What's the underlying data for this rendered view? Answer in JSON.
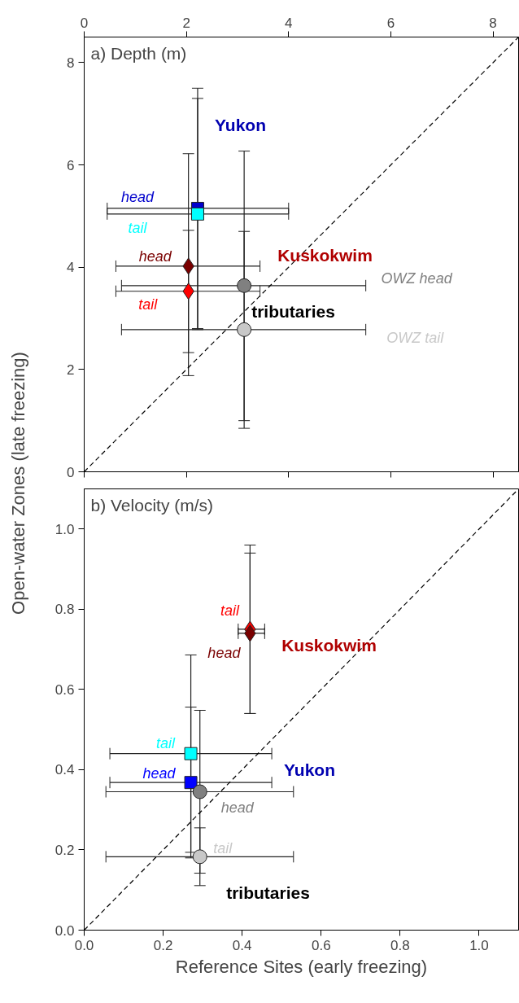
{
  "chart_data": [
    {
      "type": "scatter",
      "title": "a) Depth (m)",
      "ylabel": "Open-water Zones (late freezing)",
      "xlim": [
        0,
        8.5
      ],
      "xticks": [
        0,
        2,
        4,
        6,
        8
      ],
      "ylim": [
        0,
        8.5
      ],
      "yticks": [
        0,
        2,
        4,
        6,
        8
      ],
      "grid": false,
      "series": [
        {
          "type": "line",
          "color": "#000000",
          "line_style": "dashed",
          "x": [
            0,
            8.5
          ],
          "values": [
            0,
            8.5
          ]
        },
        {
          "name": "head",
          "color": "#0000cc",
          "marker": "square",
          "x": [
            2.22
          ],
          "values": [
            5.15
          ],
          "errors": [
            [
              2.8,
              7.5
            ]
          ],
          "xerrors": [
            [
              0.45,
              4.0
            ]
          ]
        },
        {
          "name": "tail",
          "color": "#00ffff",
          "marker": "square",
          "x": [
            2.22
          ],
          "values": [
            5.04
          ],
          "errors": [
            [
              2.78,
              7.3
            ]
          ],
          "xerrors": [
            [
              0.45,
              4.0
            ]
          ]
        },
        {
          "name": "head",
          "color": "#7a0000",
          "marker": "diamond",
          "x": [
            2.04
          ],
          "values": [
            4.02
          ],
          "errors": [
            [
              1.88,
              6.22
            ]
          ],
          "xerrors": [
            [
              0.62,
              3.44
            ]
          ]
        },
        {
          "name": "tail",
          "color": "#ff0000",
          "marker": "diamond",
          "x": [
            2.04
          ],
          "values": [
            3.53
          ],
          "errors": [
            [
              2.33,
              4.72
            ]
          ],
          "xerrors": [
            [
              0.62,
              3.44
            ]
          ]
        },
        {
          "name": "OWZ head",
          "color": "#808080",
          "marker": "circle",
          "x": [
            3.13
          ],
          "values": [
            3.64
          ],
          "errors": [
            [
              1.0,
              6.27
            ]
          ],
          "xerrors": [
            [
              0.73,
              5.51
            ]
          ]
        },
        {
          "name": "OWZ tail",
          "color": "#c8c8c8",
          "marker": "circle",
          "x": [
            3.13
          ],
          "values": [
            2.78
          ],
          "errors": [
            [
              0.85,
              4.7
            ]
          ],
          "xerrors": [
            [
              0.73,
              5.51
            ]
          ]
        }
      ],
      "annotations": [
        "Yukon",
        "Kuskokwim",
        "tributaries"
      ]
    },
    {
      "type": "scatter",
      "title": "b) Velocity (m/s)",
      "xlabel": "Reference Sites (early freezing)",
      "xlim": [
        0,
        1.1
      ],
      "xticks": [
        {
          "value": 0,
          "label": "0.0"
        },
        0.2,
        0.4,
        0.6,
        0.8,
        {
          "value": 1,
          "label": "1.0"
        }
      ],
      "ylim": [
        0,
        1.1
      ],
      "yticks": [
        {
          "value": 0,
          "label": "0.0"
        },
        0.2,
        0.4,
        0.6,
        0.8,
        {
          "value": 1,
          "label": "1.0"
        }
      ],
      "grid": false,
      "series": [
        {
          "type": "line",
          "color": "#000000",
          "line_style": "dashed",
          "x": [
            0,
            1.1
          ],
          "values": [
            0,
            1.1
          ]
        },
        {
          "name": "head",
          "color": "#0000ff",
          "marker": "square",
          "x": [
            0.27
          ],
          "values": [
            0.368
          ],
          "errors": [
            [
              0.18,
              0.556
            ]
          ],
          "xerrors": [
            [
              0.065,
              0.475
            ]
          ]
        },
        {
          "name": "tail",
          "color": "#00ffff",
          "marker": "square",
          "x": [
            0.27
          ],
          "values": [
            0.44
          ],
          "errors": [
            [
              0.194,
              0.686
            ]
          ],
          "xerrors": [
            [
              0.065,
              0.475
            ]
          ]
        },
        {
          "name": "tail",
          "color": "#ff0000",
          "marker": "diamond",
          "x": [
            0.42
          ],
          "values": [
            0.75
          ],
          "errors": [
            [
              0.54,
              0.96
            ]
          ],
          "xerrors": [
            [
              0.39,
              0.457
            ]
          ]
        },
        {
          "name": "head",
          "color": "#7a0000",
          "marker": "diamond",
          "x": [
            0.42
          ],
          "values": [
            0.74
          ],
          "errors": [
            [
              0.54,
              0.94
            ]
          ],
          "xerrors": [
            [
              0.39,
              0.457
            ]
          ]
        },
        {
          "name": "head",
          "color": "#808080",
          "marker": "circle",
          "x": [
            0.293
          ],
          "values": [
            0.345
          ],
          "errors": [
            [
              0.142,
              0.548
            ]
          ],
          "xerrors": [
            [
              0.055,
              0.53
            ]
          ]
        },
        {
          "name": "tail",
          "color": "#c8c8c8",
          "marker": "circle",
          "x": [
            0.293
          ],
          "values": [
            0.183
          ],
          "errors": [
            [
              0.111,
              0.255
            ]
          ],
          "xerrors": [
            [
              0.055,
              0.53
            ]
          ]
        }
      ],
      "annotations": [
        "Kuskokwim",
        "Yukon",
        "tributaries"
      ]
    }
  ]
}
